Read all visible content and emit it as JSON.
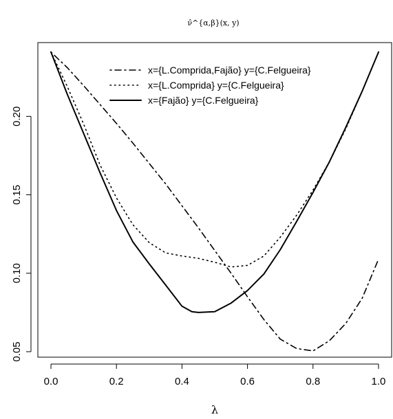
{
  "chart_data": {
    "type": "line",
    "title": "ν̂^{α,β}(x, y)",
    "xlabel": "λ",
    "ylabel": "",
    "xlim": [
      -0.04,
      1.04
    ],
    "ylim": [
      0.0465,
      0.247
    ],
    "xticks": [
      0.0,
      0.2,
      0.4,
      0.6,
      0.8,
      1.0
    ],
    "xtick_labels": [
      "0.0",
      "0.2",
      "0.4",
      "0.6",
      "0.8",
      "1.0"
    ],
    "yticks": [
      0.05,
      0.1,
      0.15,
      0.2
    ],
    "ytick_labels": [
      "0.05",
      "0.10",
      "0.15",
      "0.20"
    ],
    "grid": false,
    "legend_position": "top-right",
    "series": [
      {
        "name": "x={L.Comprida,Fajão} y={C.Felgueira}",
        "line_style": "dotdash",
        "x": [
          0.0,
          0.05,
          0.1,
          0.15,
          0.2,
          0.25,
          0.3,
          0.35,
          0.4,
          0.45,
          0.5,
          0.55,
          0.6,
          0.65,
          0.7,
          0.75,
          0.8,
          0.85,
          0.9,
          0.95,
          1.0
        ],
        "y": [
          0.241,
          0.231,
          0.2195,
          0.2075,
          0.1955,
          0.183,
          0.17,
          0.157,
          0.143,
          0.129,
          0.1145,
          0.1,
          0.085,
          0.0705,
          0.058,
          0.052,
          0.0505,
          0.057,
          0.068,
          0.084,
          0.109
        ]
      },
      {
        "name": "x={L.Comprida} y={C.Felgueira}",
        "line_style": "dotted",
        "x": [
          0.0,
          0.05,
          0.1,
          0.15,
          0.2,
          0.25,
          0.3,
          0.35,
          0.4,
          0.45,
          0.5,
          0.55,
          0.6,
          0.65,
          0.7,
          0.75,
          0.8,
          0.85,
          0.9,
          0.95,
          1.0
        ],
        "y": [
          0.241,
          0.219,
          0.195,
          0.169,
          0.148,
          0.131,
          0.1195,
          0.113,
          0.111,
          0.1095,
          0.107,
          0.104,
          0.105,
          0.111,
          0.123,
          0.137,
          0.153,
          0.171,
          0.192,
          0.216,
          0.241
        ]
      },
      {
        "name": "x={Fajão} y={C.Felgueira}",
        "line_style": "solid",
        "x": [
          0.0,
          0.05,
          0.1,
          0.15,
          0.2,
          0.25,
          0.3,
          0.35,
          0.4,
          0.43,
          0.45,
          0.5,
          0.55,
          0.6,
          0.65,
          0.7,
          0.75,
          0.8,
          0.85,
          0.9,
          0.95,
          1.0
        ],
        "y": [
          0.241,
          0.214,
          0.189,
          0.164,
          0.14,
          0.12,
          0.106,
          0.0925,
          0.079,
          0.0755,
          0.075,
          0.0755,
          0.081,
          0.089,
          0.0995,
          0.115,
          0.133,
          0.1515,
          0.171,
          0.193,
          0.216,
          0.241
        ]
      }
    ]
  }
}
